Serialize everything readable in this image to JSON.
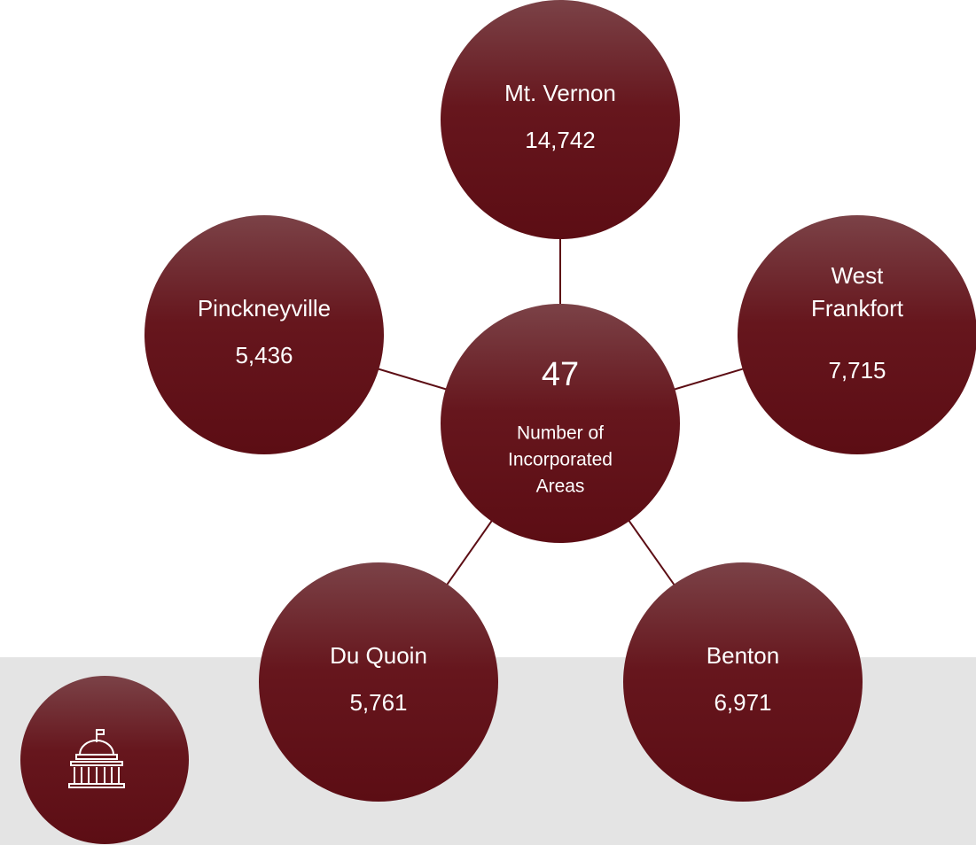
{
  "center": {
    "value": "47",
    "lines": [
      "Number of",
      "Incorporated",
      "Areas"
    ]
  },
  "nodes": [
    {
      "lines": [
        "Mt. Vernon"
      ],
      "value": "14,742"
    },
    {
      "lines": [
        "West",
        "Frankfort"
      ],
      "value": "7,715"
    },
    {
      "lines": [
        "Benton"
      ],
      "value": "6,971"
    },
    {
      "lines": [
        "Du Quoin"
      ],
      "value": "5,761"
    },
    {
      "lines": [
        "Pinckneyville"
      ],
      "value": "5,436"
    }
  ]
}
